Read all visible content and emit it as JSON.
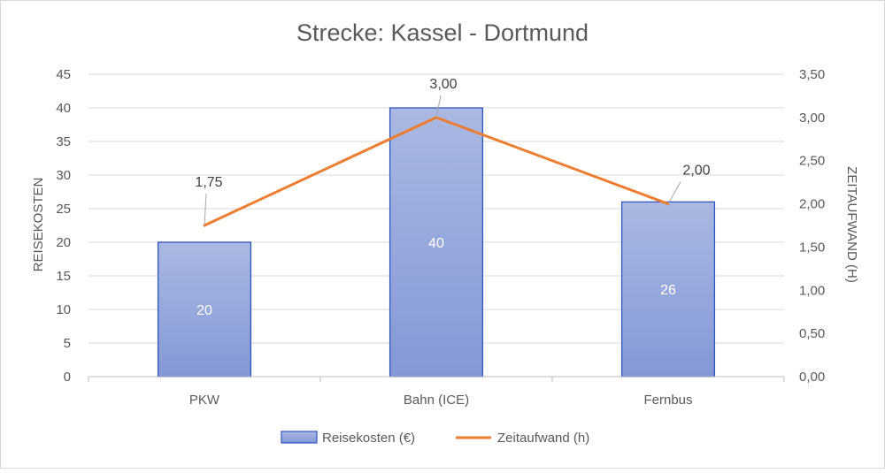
{
  "chart_data": {
    "type": "bar",
    "title": "Strecke:  Kassel - Dortmund",
    "categories": [
      "PKW",
      "Bahn (ICE)",
      "Fernbus"
    ],
    "series": [
      {
        "name": "Reisekosten (€)",
        "type": "bar",
        "axis": "left",
        "values": [
          20,
          40,
          26
        ],
        "data_labels": [
          "20",
          "40",
          "26"
        ],
        "color": "#8FA3DB"
      },
      {
        "name": "Zeitaufwand (h)",
        "type": "line",
        "axis": "right",
        "values": [
          1.75,
          3.0,
          2.0
        ],
        "data_labels": [
          "1,75",
          "3,00",
          "2,00"
        ],
        "color": "#ED7D31"
      }
    ],
    "ylabel": "REISEKOSTEN",
    "y2label": "ZEITAUFWAND (H)",
    "ylim": [
      0,
      45
    ],
    "y2lim": [
      0,
      3.5
    ],
    "yticks": [
      "0",
      "5",
      "10",
      "15",
      "20",
      "25",
      "30",
      "35",
      "40",
      "45"
    ],
    "y2ticks": [
      "0,00",
      "0,50",
      "1,00",
      "1,50",
      "2,00",
      "2,50",
      "3,00",
      "3,50"
    ],
    "grid": true,
    "legend": "bottom"
  }
}
